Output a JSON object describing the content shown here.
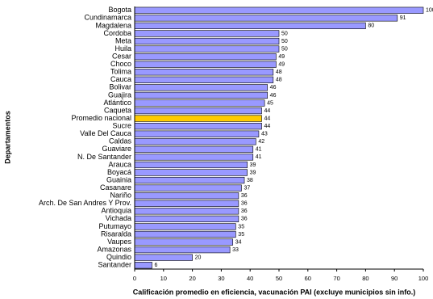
{
  "chart_data": {
    "type": "barh",
    "x_label": "Calificación promedio en eficiencia, vacunación PAI (excluye municipios sin info.)",
    "y_label": "Departamentos",
    "categories": [
      "Bogota",
      "Cundinamarca",
      "Magdalena",
      "Cordoba",
      "Meta",
      "Huila",
      "Cesar",
      "Choco",
      "Tolima",
      "Cauca",
      "Bolivar",
      "Guajira",
      "Atlántico",
      "Caqueta",
      "Promedio nacional",
      "Sucre",
      "Valle Del Cauca",
      "Caldas",
      "Guaviare",
      "N. De Santander",
      "Arauca",
      "Boyacá",
      "Guainia",
      "Casanare",
      "Nariño",
      "Arch. De San Andres Y Prov.",
      "Antioquia",
      "Vichada",
      "Putumayo",
      "Risaralda",
      "Vaupes",
      "Amazonas",
      "Quindio",
      "Santander"
    ],
    "values": [
      100,
      91,
      80,
      50,
      50,
      50,
      49,
      49,
      48,
      48,
      46,
      46,
      45,
      44,
      44,
      44,
      43,
      42,
      41,
      41,
      39,
      39,
      38,
      37,
      36,
      36,
      36,
      36,
      35,
      35,
      34,
      33,
      20,
      6
    ],
    "colors": [
      "#9999ff",
      "#9999ff",
      "#9999ff",
      "#9999ff",
      "#9999ff",
      "#9999ff",
      "#9999ff",
      "#9999ff",
      "#9999ff",
      "#9999ff",
      "#9999ff",
      "#9999ff",
      "#9999ff",
      "#9999ff",
      "#ffcc00",
      "#9999ff",
      "#9999ff",
      "#9999ff",
      "#9999ff",
      "#9999ff",
      "#9999ff",
      "#9999ff",
      "#9999ff",
      "#9999ff",
      "#9999ff",
      "#9999ff",
      "#9999ff",
      "#9999ff",
      "#9999ff",
      "#9999ff",
      "#9999ff",
      "#9999ff",
      "#9999ff",
      "#9999ff"
    ],
    "xlim": [
      0,
      100
    ],
    "xticks": [
      0,
      10,
      20,
      30,
      40,
      50,
      60,
      70,
      80,
      90,
      100
    ]
  }
}
